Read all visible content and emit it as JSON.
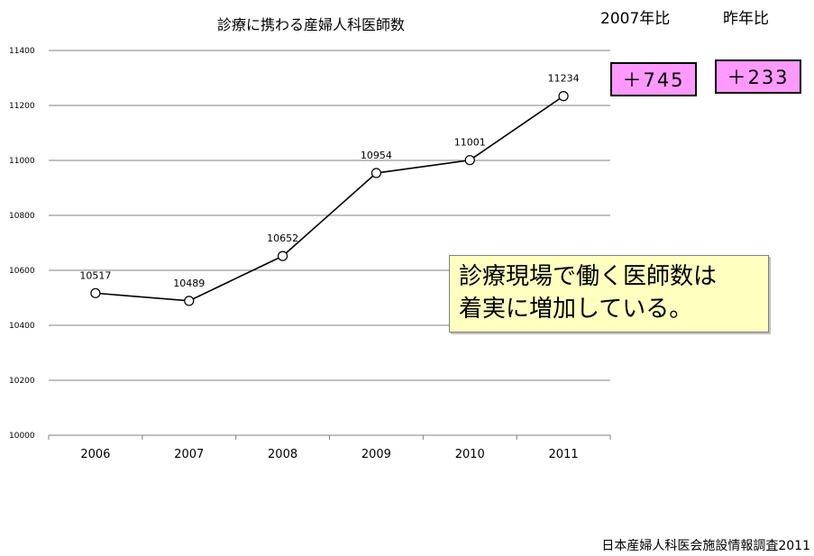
{
  "chart_data": {
    "type": "line",
    "title": "診療に携わる産婦人科医師数",
    "xlabel": "",
    "ylabel": "",
    "categories": [
      "2006",
      "2007",
      "2008",
      "2009",
      "2010",
      "2011"
    ],
    "series": [
      {
        "values": [
          10517,
          10489,
          10652,
          10954,
          11001,
          11234
        ]
      }
    ],
    "data_labels": [
      "10517",
      "10489",
      "10652",
      "10954",
      "11001",
      "11234"
    ],
    "y_ticks": [
      "10000",
      "10200",
      "10400",
      "10600",
      "10800",
      "11000",
      "11200",
      "11400"
    ],
    "ylim": [
      10000,
      11400
    ],
    "grid": true,
    "line_color": "#000000",
    "marker": "open-circle"
  },
  "badges": {
    "since2007": {
      "label": "2007年比",
      "value": "＋745"
    },
    "yoy": {
      "label": "昨年比",
      "value": "＋233"
    }
  },
  "badge_color": "#ff99ff",
  "callout": {
    "line1": "診療現場で働く医師数は",
    "line2": "着実に増加している。"
  },
  "callout_color": "#ffffc0",
  "source": "日本産婦人科医会施設情報調査2011"
}
